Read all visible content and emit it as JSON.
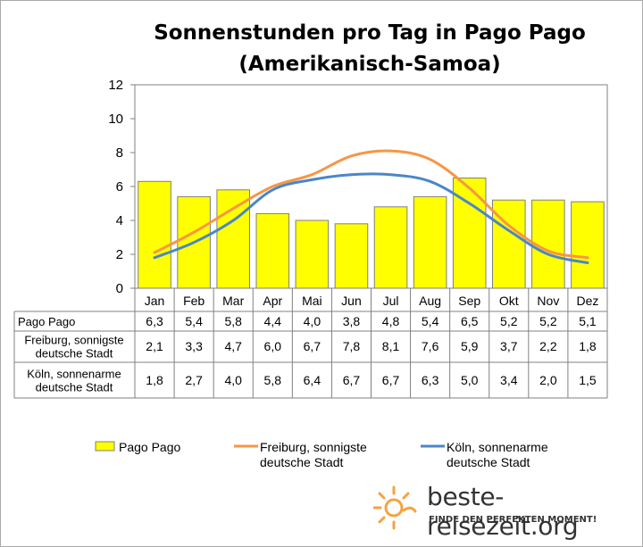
{
  "chart_data": {
    "type": "bar",
    "title": "Sonnenstunden pro Tag in Pago Pago",
    "subtitle": "(Amerikanisch-Samoa)",
    "categories": [
      "Jan",
      "Feb",
      "Mar",
      "Apr",
      "Mai",
      "Jun",
      "Jul",
      "Aug",
      "Sep",
      "Okt",
      "Nov",
      "Dez"
    ],
    "ylim": [
      0,
      12
    ],
    "yticks": [
      "0",
      "2",
      "4",
      "6",
      "8",
      "10",
      "12"
    ],
    "grid": false,
    "legend": "bottom",
    "series": [
      {
        "name": "Pago Pago",
        "type": "bar",
        "color": "#ffff00",
        "values": [
          6.3,
          5.4,
          5.8,
          4.4,
          4.0,
          3.8,
          4.8,
          5.4,
          6.5,
          5.2,
          5.2,
          5.1
        ],
        "labels": [
          "6,3",
          "5,4",
          "5,8",
          "4,4",
          "4,0",
          "3,8",
          "4,8",
          "5,4",
          "6,5",
          "5,2",
          "5,2",
          "5,1"
        ]
      },
      {
        "name": "Freiburg, sonnigste deutsche Stadt",
        "type": "line",
        "color": "#f79646",
        "values": [
          2.1,
          3.3,
          4.7,
          6.0,
          6.7,
          7.8,
          8.1,
          7.6,
          5.9,
          3.7,
          2.2,
          1.8
        ],
        "labels": [
          "2,1",
          "3,3",
          "4,7",
          "6,0",
          "6,7",
          "7,8",
          "8,1",
          "7,6",
          "5,9",
          "3,7",
          "2,2",
          "1,8"
        ]
      },
      {
        "name": "Köln, sonnenarme deutsche Stadt",
        "type": "line",
        "color": "#4a86c8",
        "values": [
          1.8,
          2.7,
          4.0,
          5.8,
          6.4,
          6.7,
          6.7,
          6.3,
          5.0,
          3.4,
          2.0,
          1.5
        ],
        "labels": [
          "1,8",
          "2,7",
          "4,0",
          "5,8",
          "6,4",
          "6,7",
          "6,7",
          "6,3",
          "5,0",
          "3,4",
          "2,0",
          "1,5"
        ]
      }
    ],
    "table_row_labels": [
      [
        "Pago Pago"
      ],
      [
        "Freiburg, sonnigste",
        "deutsche Stadt"
      ],
      [
        "Köln, sonnenarme",
        "deutsche Stadt"
      ]
    ],
    "legend_labels": [
      [
        "Pago Pago"
      ],
      [
        "Freiburg, sonnigste",
        "deutsche Stadt"
      ],
      [
        "Köln, sonnenarme",
        "deutsche Stadt"
      ]
    ]
  },
  "brand": {
    "name": "beste-reisezeit.org",
    "slogan": "FINDE DEN PERFEKTEN MOMENT!",
    "icon": "sun-icon",
    "icon_color": "#f4a340"
  }
}
